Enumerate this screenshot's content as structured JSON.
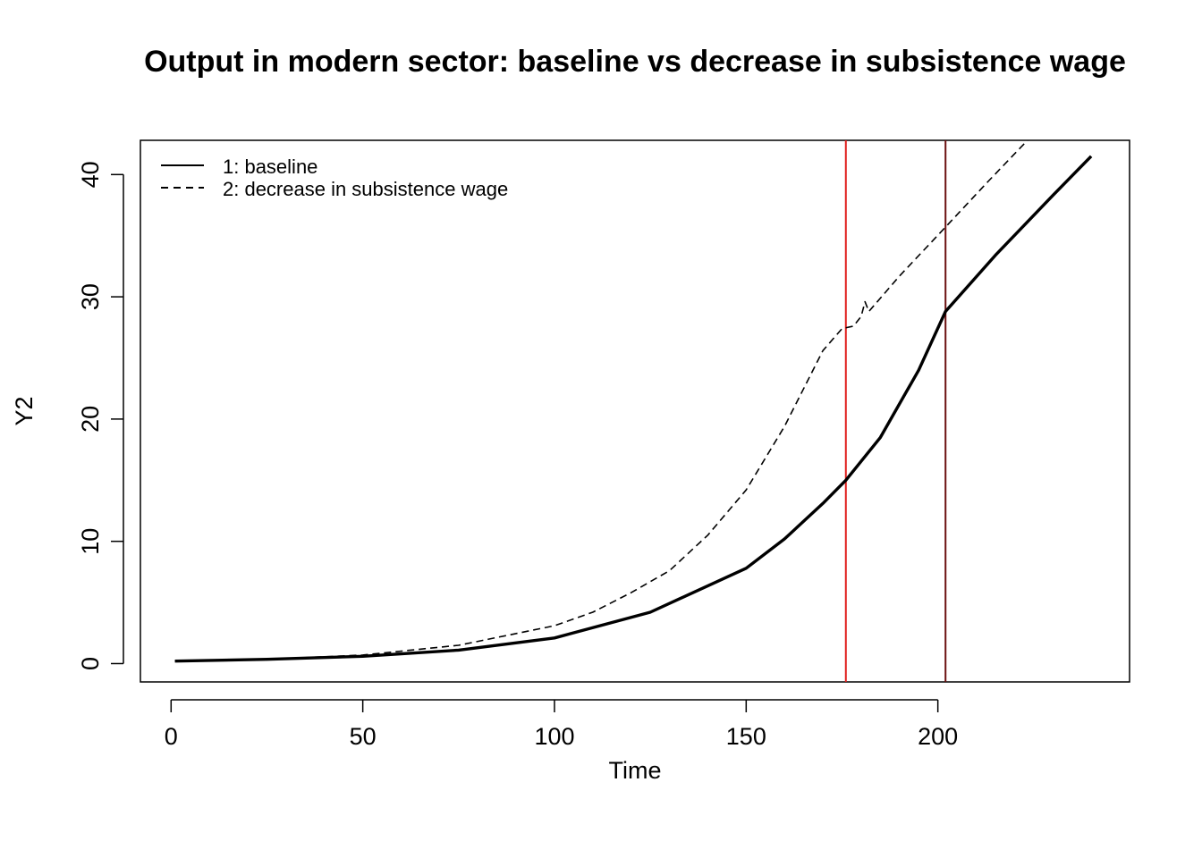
{
  "chart_data": {
    "type": "line",
    "title": "Output in  modern sector: baseline vs decrease in subsistence wage",
    "xlabel": "Time",
    "ylabel": "Y2",
    "xlim": [
      -8,
      250
    ],
    "ylim": [
      -1.5,
      42.8
    ],
    "x_ticks": [
      0,
      50,
      100,
      150,
      200
    ],
    "y_ticks": [
      0,
      10,
      20,
      30,
      40
    ],
    "grid": false,
    "legend": {
      "position": "top-left",
      "entries": [
        "1: baseline",
        "2: decrease in subsistence wage"
      ]
    },
    "vlines": [
      {
        "x": 176,
        "color": "#e0201e"
      },
      {
        "x": 202,
        "color": "#6b1010"
      }
    ],
    "series": [
      {
        "name": "1: baseline",
        "style": "solid",
        "color": "#000000",
        "x": [
          1,
          25,
          50,
          75,
          100,
          125,
          150,
          160,
          170,
          176,
          185,
          195,
          202,
          215,
          230,
          240
        ],
        "y": [
          0.2,
          0.35,
          0.6,
          1.1,
          2.1,
          4.2,
          7.8,
          10.2,
          13.1,
          15.0,
          18.5,
          24.0,
          28.8,
          33.4,
          38.3,
          41.5
        ]
      },
      {
        "name": "2: decrease in subsistence wage",
        "style": "dashed",
        "color": "#000000",
        "x": [
          1,
          25,
          50,
          75,
          100,
          110,
          120,
          130,
          140,
          150,
          160,
          170,
          175,
          178,
          180,
          181,
          182,
          190,
          202,
          213,
          224
        ],
        "y": [
          0.2,
          0.35,
          0.7,
          1.5,
          3.1,
          4.2,
          5.8,
          7.6,
          10.5,
          14.2,
          19.4,
          25.6,
          27.4,
          27.6,
          28.4,
          29.6,
          28.8,
          31.7,
          35.7,
          39.4,
          43.0
        ]
      }
    ]
  }
}
